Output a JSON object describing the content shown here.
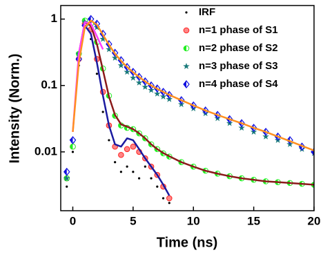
{
  "chart_data": {
    "type": "scatter",
    "x_label": "Time (ns)",
    "y_label": "Intensity (Norm.)",
    "xlim": [
      -1,
      20
    ],
    "xticks": [
      0,
      5,
      10,
      15,
      20
    ],
    "ylim": [
      0.0013,
      1.6
    ],
    "yticks": [
      0.01,
      0.1,
      1
    ],
    "y_scale": "log",
    "legend": "upper right",
    "x": [
      -0.5,
      0,
      0.5,
      1,
      1.5,
      2,
      2.5,
      3,
      3.5,
      4,
      4.5,
      5,
      5.5,
      6,
      6.5,
      7,
      7.5,
      8,
      9,
      10,
      11,
      12,
      13,
      14,
      15,
      16,
      17,
      18,
      19,
      20
    ],
    "series": [
      {
        "name": "IRF",
        "color": "#000000",
        "marker": "dot",
        "values": [
          0.003,
          0.01,
          0.2,
          0.9,
          0.5,
          0.15,
          0.04,
          0.015,
          0.007,
          0.005,
          0.006,
          0.005,
          0.004,
          0.006,
          0.004,
          0.003,
          0.002,
          0.0017,
          null,
          null,
          null,
          null,
          null,
          null,
          null,
          null,
          null,
          null,
          null,
          null
        ]
      },
      {
        "name": "n=1 phase of S1",
        "color": "#ff2020",
        "marker": "circle",
        "values": [
          0.004,
          0.012,
          0.25,
          0.85,
          0.7,
          0.25,
          0.08,
          0.025,
          0.012,
          0.009,
          0.011,
          0.012,
          0.01,
          0.008,
          0.006,
          0.0045,
          0.003,
          0.002,
          null,
          null,
          null,
          null,
          null,
          null,
          null,
          null,
          null,
          null,
          null,
          null
        ]
      },
      {
        "name": "n=2 phase of S2",
        "color": "#22ee22",
        "marker": "half-circle",
        "values": [
          0.004,
          0.012,
          0.3,
          0.95,
          0.85,
          0.45,
          0.18,
          0.07,
          0.035,
          0.025,
          0.023,
          0.022,
          0.019,
          0.016,
          0.013,
          0.011,
          0.0095,
          0.0085,
          0.007,
          0.006,
          0.0052,
          0.0047,
          0.0043,
          0.004,
          0.0038,
          0.0036,
          0.0035,
          0.0034,
          0.0033,
          0.0032
        ]
      },
      {
        "name": "n=3 phase of S3",
        "color": "#1a7a7a",
        "marker": "star",
        "values": [
          0.004,
          0.015,
          0.3,
          0.9,
          1.0,
          0.75,
          0.5,
          0.35,
          0.26,
          0.2,
          0.16,
          0.13,
          0.11,
          0.095,
          0.085,
          0.075,
          0.068,
          0.062,
          0.052,
          0.045,
          0.038,
          0.032,
          0.027,
          0.023,
          0.02,
          0.017,
          0.015,
          0.013,
          0.011,
          0.0095
        ]
      },
      {
        "name": "n=4 phase of S4",
        "color": "#1010e0",
        "marker": "diamond",
        "values": [
          0.005,
          0.015,
          0.25,
          0.8,
          1.0,
          0.85,
          0.6,
          0.42,
          0.31,
          0.24,
          0.19,
          0.16,
          0.135,
          0.115,
          0.1,
          0.09,
          0.08,
          0.072,
          0.06,
          0.05,
          0.042,
          0.036,
          0.031,
          0.027,
          0.023,
          0.02,
          0.017,
          0.015,
          0.012,
          0.01
        ]
      }
    ],
    "fits": [
      {
        "color": "#1a1aa0",
        "values": [
          null,
          null,
          0.28,
          0.8,
          0.6,
          0.22,
          0.07,
          0.025,
          0.013,
          0.012,
          0.016,
          0.015,
          0.011,
          0.008,
          0.006,
          0.0045,
          0.0032,
          0.0022,
          null,
          null,
          null,
          null,
          null,
          null,
          null,
          null,
          null,
          null,
          null,
          null
        ]
      },
      {
        "color": "#8b1a1a",
        "values": [
          null,
          null,
          0.3,
          0.9,
          0.8,
          0.42,
          0.17,
          0.068,
          0.036,
          0.026,
          0.024,
          0.022,
          0.019,
          0.016,
          0.013,
          0.011,
          0.0096,
          0.0086,
          0.007,
          0.006,
          0.0052,
          0.0047,
          0.0043,
          0.004,
          0.0038,
          0.0036,
          0.0035,
          0.0034,
          0.0033,
          0.0032
        ]
      },
      {
        "color": "#ff40ff",
        "values": [
          null,
          0.02,
          0.3,
          0.9,
          0.85,
          0.55,
          0.35,
          null,
          null,
          null,
          null,
          null,
          null,
          null,
          null,
          null,
          null,
          null,
          null,
          null,
          null,
          null,
          null,
          null,
          null,
          null,
          null,
          null,
          null,
          null
        ]
      },
      {
        "color": "#ff9020",
        "values": [
          null,
          0.02,
          0.22,
          0.75,
          0.95,
          0.82,
          0.58,
          0.41,
          0.3,
          0.235,
          0.19,
          0.158,
          0.134,
          0.115,
          0.1,
          0.089,
          0.08,
          0.072,
          0.06,
          0.05,
          0.042,
          0.036,
          0.031,
          0.027,
          0.023,
          0.02,
          0.017,
          0.0145,
          0.0123,
          0.0105
        ]
      }
    ]
  }
}
